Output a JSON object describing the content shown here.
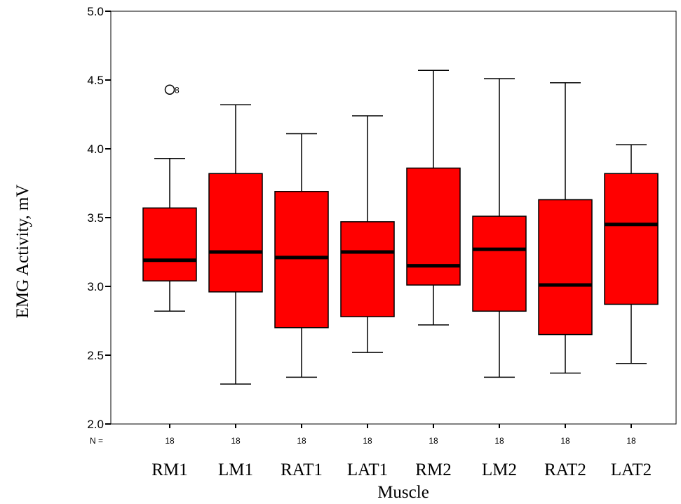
{
  "chart_data": {
    "type": "boxplot",
    "xlabel": "Muscle",
    "ylabel": "EMG Activity,  mV",
    "ylim": [
      2.0,
      5.0
    ],
    "yticks": [
      "2.0",
      "2.5",
      "3.0",
      "3.5",
      "4.0",
      "4.5",
      "5.0"
    ],
    "n_label": "N =",
    "box_color": "#ff0000",
    "categories": [
      "RM1",
      "LM1",
      "RAT1",
      "LAT1",
      "RM2",
      "LM2",
      "RAT2",
      "LAT2"
    ],
    "n": [
      "18",
      "18",
      "18",
      "18",
      "18",
      "18",
      "18",
      "18"
    ],
    "boxes": [
      {
        "min": 2.82,
        "q1": 3.04,
        "median": 3.19,
        "q3": 3.57,
        "max": 3.93,
        "outliers": [
          {
            "value": 4.43,
            "label": "8"
          }
        ]
      },
      {
        "min": 2.29,
        "q1": 2.96,
        "median": 3.25,
        "q3": 3.82,
        "max": 4.32,
        "outliers": []
      },
      {
        "min": 2.34,
        "q1": 2.7,
        "median": 3.21,
        "q3": 3.69,
        "max": 4.11,
        "outliers": []
      },
      {
        "min": 2.52,
        "q1": 2.78,
        "median": 3.25,
        "q3": 3.47,
        "max": 4.24,
        "outliers": []
      },
      {
        "min": 2.72,
        "q1": 3.01,
        "median": 3.15,
        "q3": 3.86,
        "max": 4.57,
        "outliers": []
      },
      {
        "min": 2.34,
        "q1": 2.82,
        "median": 3.27,
        "q3": 3.51,
        "max": 4.51,
        "outliers": []
      },
      {
        "min": 2.37,
        "q1": 2.65,
        "median": 3.01,
        "q3": 3.63,
        "max": 4.48,
        "outliers": []
      },
      {
        "min": 2.44,
        "q1": 2.87,
        "median": 3.45,
        "q3": 3.82,
        "max": 4.03,
        "outliers": []
      }
    ]
  }
}
